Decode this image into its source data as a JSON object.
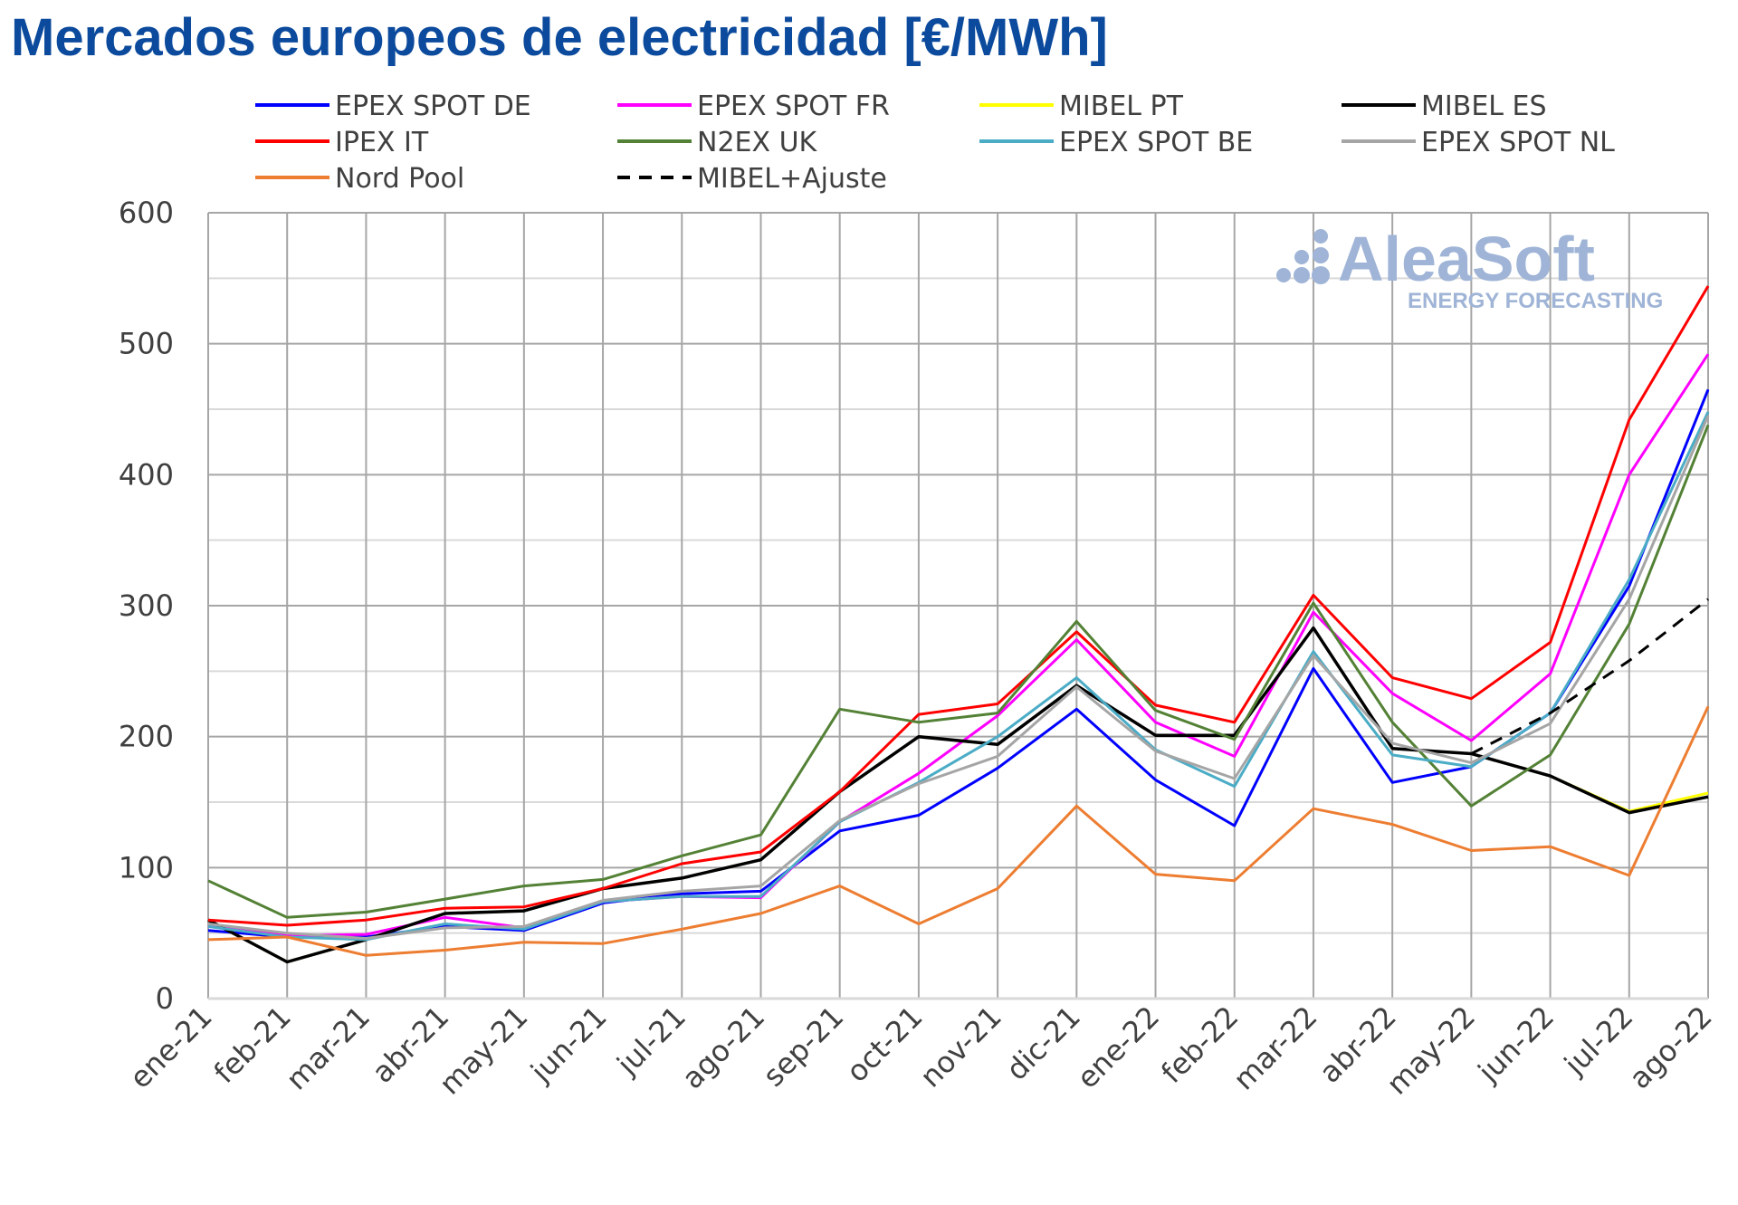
{
  "chart_data": {
    "type": "line",
    "title": "Mercados europeos de electricidad [€/MWh]",
    "xlabel": "",
    "ylabel": "",
    "ylim": [
      0,
      600
    ],
    "yticks": [
      0,
      100,
      200,
      300,
      400,
      500,
      600
    ],
    "grid": true,
    "legend_position": "top",
    "categories": [
      "ene-21",
      "feb-21",
      "mar-21",
      "abr-21",
      "may-21",
      "jun-21",
      "jul-21",
      "ago-21",
      "sep-21",
      "oct-21",
      "nov-21",
      "dic-21",
      "ene-22",
      "feb-22",
      "mar-22",
      "abr-22",
      "may-22",
      "jun-22",
      "jul-22",
      "ago-22"
    ],
    "series": [
      {
        "name": "EPEX SPOT DE",
        "color": "#0000ff",
        "dash": false,
        "values": [
          52,
          47,
          47,
          55,
          52,
          73,
          80,
          82,
          128,
          140,
          176,
          221,
          167,
          132,
          252,
          165,
          177,
          218,
          315,
          465
        ]
      },
      {
        "name": "EPEX SPOT FR",
        "color": "#ff00ff",
        "dash": false,
        "values": [
          56,
          48,
          49,
          62,
          54,
          74,
          78,
          77,
          135,
          172,
          216,
          274,
          211,
          185,
          295,
          233,
          197,
          248,
          400,
          492
        ]
      },
      {
        "name": "MIBEL PT",
        "color": "#ffff00",
        "dash": false,
        "values": [
          60,
          28,
          45,
          65,
          67,
          84,
          92,
          106,
          158,
          200,
          194,
          239,
          201,
          201,
          283,
          191,
          187,
          170,
          143,
          157
        ]
      },
      {
        "name": "MIBEL ES",
        "color": "#000000",
        "dash": false,
        "values": [
          60,
          28,
          45,
          65,
          67,
          84,
          92,
          106,
          158,
          200,
          194,
          239,
          201,
          201,
          283,
          191,
          187,
          170,
          142,
          154
        ]
      },
      {
        "name": "IPEX IT",
        "color": "#ff0000",
        "dash": false,
        "values": [
          60,
          56,
          60,
          69,
          70,
          84,
          103,
          112,
          158,
          217,
          225,
          280,
          224,
          211,
          308,
          245,
          229,
          272,
          442,
          544
        ]
      },
      {
        "name": "N2EX UK",
        "color": "#538135",
        "dash": false,
        "values": [
          90,
          62,
          66,
          76,
          86,
          91,
          109,
          125,
          221,
          211,
          218,
          288,
          220,
          198,
          302,
          211,
          147,
          186,
          286,
          438
        ]
      },
      {
        "name": "EPEX SPOT BE",
        "color": "#4bacc6",
        "dash": false,
        "values": [
          55,
          47,
          45,
          57,
          53,
          74,
          78,
          78,
          135,
          165,
          200,
          245,
          190,
          162,
          265,
          186,
          177,
          218,
          320,
          448
        ]
      },
      {
        "name": "EPEX SPOT NL",
        "color": "#a5a5a5",
        "dash": false,
        "values": [
          57,
          50,
          46,
          54,
          55,
          75,
          82,
          86,
          136,
          164,
          185,
          238,
          189,
          168,
          262,
          195,
          180,
          210,
          305,
          445
        ]
      },
      {
        "name": "Nord Pool",
        "color": "#ed7d31",
        "dash": false,
        "values": [
          45,
          47,
          33,
          37,
          43,
          42,
          53,
          65,
          86,
          57,
          84,
          147,
          95,
          90,
          145,
          133,
          113,
          116,
          94,
          223
        ]
      },
      {
        "name": "MIBEL+Ajuste",
        "color": "#000000",
        "dash": true,
        "values": [
          null,
          null,
          null,
          null,
          null,
          null,
          null,
          null,
          null,
          null,
          null,
          null,
          null,
          null,
          null,
          null,
          187,
          218,
          258,
          305
        ]
      }
    ]
  },
  "logo": {
    "name": "AleaSoft",
    "tagline": "ENERGY FORECASTING"
  }
}
